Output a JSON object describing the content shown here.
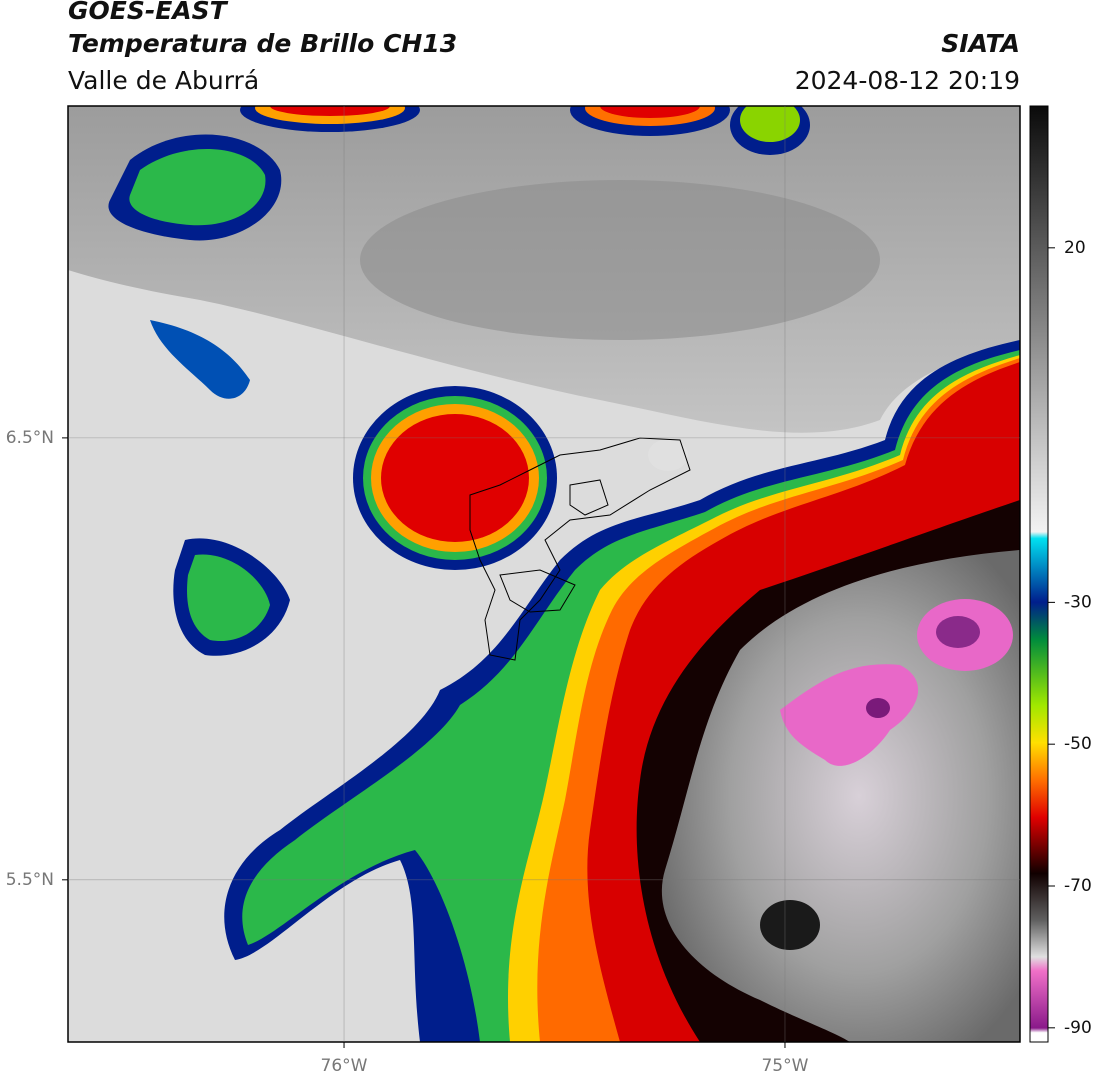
{
  "chart_data": {
    "type": "map",
    "title": "GOES-EAST",
    "subtitle": "Temperatura de Brillo CH13",
    "source": "SIATA",
    "region": "Valle de Aburrá",
    "timestamp": "2024-08-12 20:19",
    "xlim": [
      -76.626,
      -74.467
    ],
    "ylim": [
      5.133,
      7.251
    ],
    "xticks": [
      {
        "value": -76,
        "label": "76°W"
      },
      {
        "value": -75,
        "label": "75°W"
      }
    ],
    "yticks": [
      {
        "value": 5.5,
        "label": "5.5°N"
      },
      {
        "value": 6.5,
        "label": "6.5°N"
      }
    ],
    "colorbar": {
      "lim": [
        -92,
        40
      ],
      "ticks": [
        -90,
        -70,
        -50,
        -30,
        20
      ]
    },
    "grid": true
  }
}
